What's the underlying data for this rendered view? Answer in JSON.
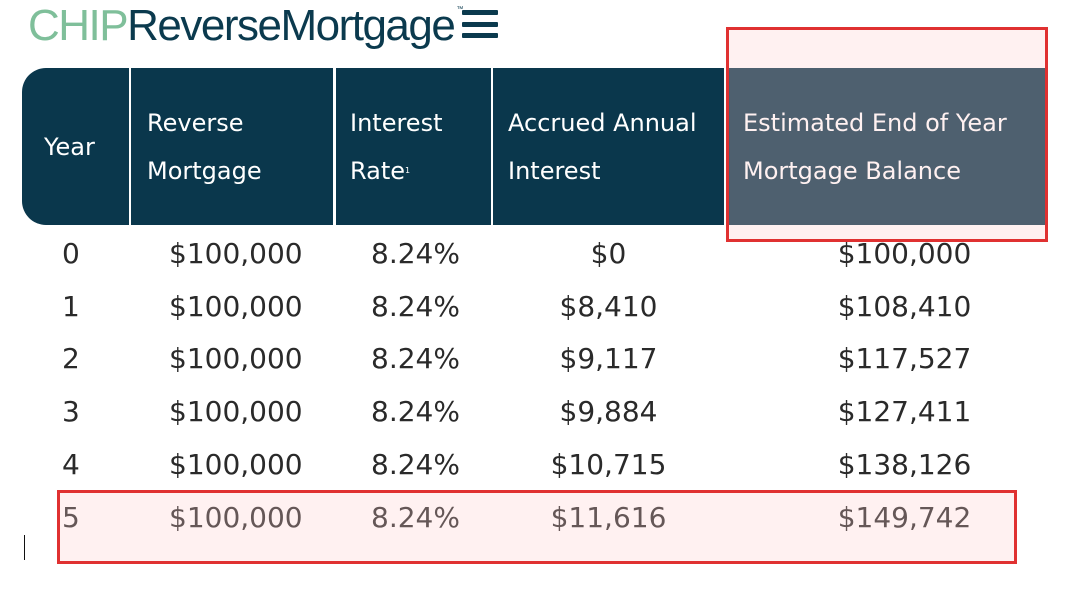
{
  "logo": {
    "part1": "CHIP",
    "part2": "ReverseMortgage",
    "mark": "™"
  },
  "menu_icon": "hamburger-icon",
  "table": {
    "headers": {
      "year": "Year",
      "reverse_mortgage": "Reverse\nMortgage",
      "interest_rate": "Interest\nRate",
      "interest_rate_footnote": "1",
      "accrued_interest": "Accrued Annual\nInterest",
      "end_balance": "Estimated End of Year\nMortgage Balance"
    },
    "rows": [
      {
        "year": "0",
        "reverse_mortgage": "$100,000",
        "interest_rate": "8.24%",
        "accrued_interest": "$0",
        "end_balance": "$100,000"
      },
      {
        "year": "1",
        "reverse_mortgage": "$100,000",
        "interest_rate": "8.24%",
        "accrued_interest": "$8,410",
        "end_balance": "$108,410"
      },
      {
        "year": "2",
        "reverse_mortgage": "$100,000",
        "interest_rate": "8.24%",
        "accrued_interest": "$9,117",
        "end_balance": "$117,527"
      },
      {
        "year": "3",
        "reverse_mortgage": "$100,000",
        "interest_rate": "8.24%",
        "accrued_interest": "$9,884",
        "end_balance": "$127,411"
      },
      {
        "year": "4",
        "reverse_mortgage": "$100,000",
        "interest_rate": "8.24%",
        "accrued_interest": "$10,715",
        "end_balance": "$138,126"
      },
      {
        "year": "5",
        "reverse_mortgage": "$100,000",
        "interest_rate": "8.24%",
        "accrued_interest": "$11,616",
        "end_balance": "$149,742"
      }
    ]
  },
  "colors": {
    "header_bg": "#0a374c",
    "logo_green": "#7fbf9a",
    "logo_navy": "#0b3a4e",
    "highlight": "#e03131"
  }
}
